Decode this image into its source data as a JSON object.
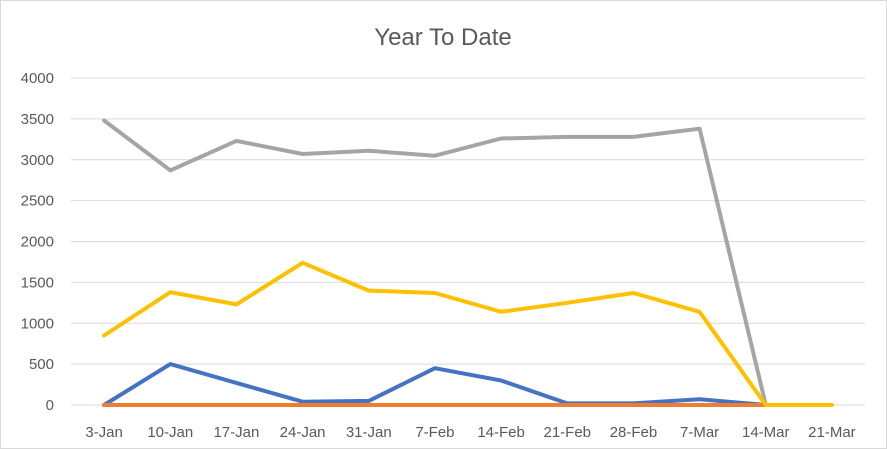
{
  "chart_data": {
    "type": "line",
    "title": "Year To Date",
    "xlabel": "",
    "ylabel": "",
    "categories": [
      "3-Jan",
      "10-Jan",
      "17-Jan",
      "24-Jan",
      "31-Jan",
      "7-Feb",
      "14-Feb",
      "21-Feb",
      "28-Feb",
      "7-Mar",
      "14-Mar",
      "21-Mar"
    ],
    "ylim": [
      0,
      4000
    ],
    "yticks": [
      0,
      500,
      1000,
      1500,
      2000,
      2500,
      3000,
      3500,
      4000
    ],
    "grid": true,
    "legend": "none",
    "series": [
      {
        "color": "#4472c4",
        "values": [
          0,
          500,
          270,
          40,
          50,
          450,
          300,
          20,
          20,
          70,
          0,
          null
        ]
      },
      {
        "color": "#ed7d31",
        "values": [
          0,
          0,
          0,
          0,
          0,
          0,
          0,
          0,
          0,
          0,
          0,
          null
        ]
      },
      {
        "color": "#a5a5a5",
        "values": [
          3480,
          2870,
          3230,
          3070,
          3110,
          3050,
          3260,
          3280,
          3280,
          3380,
          0,
          null
        ]
      },
      {
        "color": "#ffc000",
        "values": [
          850,
          1380,
          1230,
          1740,
          1400,
          1370,
          1140,
          1250,
          1370,
          1140,
          0,
          0
        ]
      }
    ]
  }
}
